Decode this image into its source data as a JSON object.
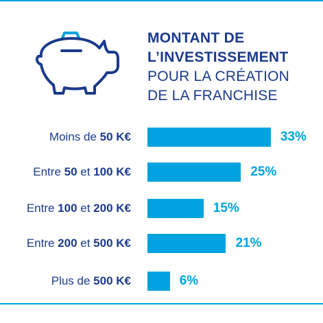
{
  "header": {
    "title_line1": "MONTANT DE",
    "title_line2": "L’INVESTISSEMENT",
    "subtitle_line1": "POUR LA CRÉATION",
    "subtitle_line2": "DE LA FRANCHISE",
    "icon": "piggy-bank-icon"
  },
  "colors": {
    "accent": "#00a3e0",
    "text": "#1b3a8c"
  },
  "chart_data": {
    "type": "bar",
    "orientation": "horizontal",
    "categories": [
      {
        "pre": "Moins de ",
        "a": "50 K€",
        "mid": "",
        "b": ""
      },
      {
        "pre": "Entre ",
        "a": "50",
        "mid": " et ",
        "b": "100 K€"
      },
      {
        "pre": "Entre ",
        "a": "100",
        "mid": " et ",
        "b": "200 K€"
      },
      {
        "pre": "Entre ",
        "a": "200",
        "mid": " et ",
        "b": "500 K€"
      },
      {
        "pre": "Plus de ",
        "a": "500 K€",
        "mid": "",
        "b": ""
      }
    ],
    "values": [
      33,
      25,
      15,
      21,
      6
    ],
    "value_labels": [
      "33%",
      "25%",
      "15%",
      "21%",
      "6%"
    ],
    "unit": "%"
  }
}
